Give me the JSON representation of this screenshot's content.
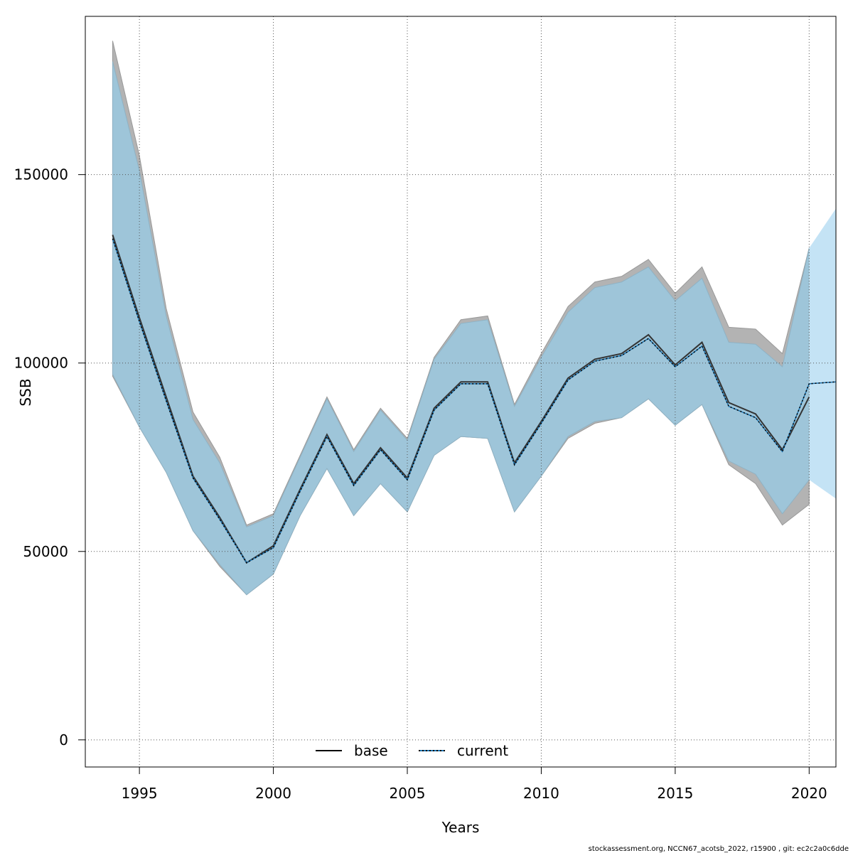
{
  "chart_data": {
    "type": "line",
    "xlabel": "Years",
    "ylabel": "SSB",
    "xlim": [
      1992.98,
      2021.0
    ],
    "ylim": [
      -7200,
      192000
    ],
    "xticks": [
      1995,
      2000,
      2005,
      2010,
      2015,
      2020
    ],
    "yticks": [
      0,
      50000,
      100000,
      150000
    ],
    "grid": true,
    "legend_position": "bottom-center",
    "colors": {
      "base_band": "#b3b3b3",
      "current_band": "#9ec5d9",
      "forecast_band": "#c4e3f5",
      "base_line": "#333333",
      "current_line": "#000000",
      "current_line_accent": "#1f77b4"
    },
    "series": [
      {
        "name": "base",
        "style": "solid",
        "x": [
          1994,
          1995,
          1996,
          1997,
          1998,
          1999,
          2000,
          2001,
          2002,
          2003,
          2004,
          2005,
          2006,
          2007,
          2008,
          2009,
          2010,
          2011,
          2012,
          2013,
          2014,
          2015,
          2016,
          2017,
          2018,
          2019,
          2020
        ],
        "values": [
          134000,
          112000,
          91000,
          70000,
          59000,
          47000,
          51500,
          66500,
          81000,
          68000,
          77500,
          69500,
          88000,
          95000,
          95000,
          73500,
          84500,
          96000,
          101000,
          102500,
          107500,
          99500,
          105500,
          89500,
          86500,
          77000,
          91000
        ],
        "upper": [
          185500,
          155000,
          114500,
          87000,
          75000,
          57000,
          60000,
          75500,
          91000,
          77000,
          88000,
          80000,
          101500,
          111500,
          112500,
          89000,
          102500,
          115000,
          121500,
          123000,
          127500,
          118500,
          125500,
          109500,
          109000,
          102500,
          130500
        ],
        "lower": [
          96500,
          83000,
          71000,
          55500,
          46000,
          38500,
          44000,
          59500,
          72000,
          59500,
          68000,
          60500,
          75500,
          80500,
          80000,
          60500,
          70000,
          80000,
          84000,
          85500,
          90500,
          83500,
          89000,
          73000,
          68000,
          57000,
          62500
        ]
      },
      {
        "name": "current",
        "style": "dotted",
        "x": [
          1994,
          1995,
          1996,
          1997,
          1998,
          1999,
          2000,
          2001,
          2002,
          2003,
          2004,
          2005,
          2006,
          2007,
          2008,
          2009,
          2010,
          2011,
          2012,
          2013,
          2014,
          2015,
          2016,
          2017,
          2018,
          2019,
          2020,
          2021
        ],
        "values": [
          133000,
          111000,
          90000,
          69500,
          58500,
          47000,
          51000,
          66000,
          80500,
          67500,
          77000,
          69000,
          87500,
          94500,
          94500,
          73000,
          84000,
          95500,
          100500,
          102000,
          106500,
          99000,
          104500,
          88500,
          85500,
          76500,
          94500,
          95000
        ],
        "upper": [
          180000,
          151000,
          112500,
          85000,
          73500,
          56500,
          59500,
          75000,
          90500,
          76500,
          87500,
          79500,
          101000,
          110500,
          111500,
          88500,
          101500,
          113500,
          120000,
          121500,
          125500,
          116500,
          122500,
          105500,
          105000,
          99000,
          130500,
          141000
        ],
        "lower": [
          97000,
          83000,
          71000,
          55500,
          46500,
          38500,
          44000,
          59500,
          72000,
          59500,
          68000,
          60500,
          75500,
          80500,
          80000,
          60500,
          70000,
          80500,
          84500,
          85500,
          90500,
          83500,
          89000,
          74000,
          70500,
          60000,
          69000,
          64000
        ]
      }
    ]
  },
  "footer_note": "stockassessment.org, NCCN67_acotsb_2022, r15900 , git: ec2c2a0c6dde"
}
